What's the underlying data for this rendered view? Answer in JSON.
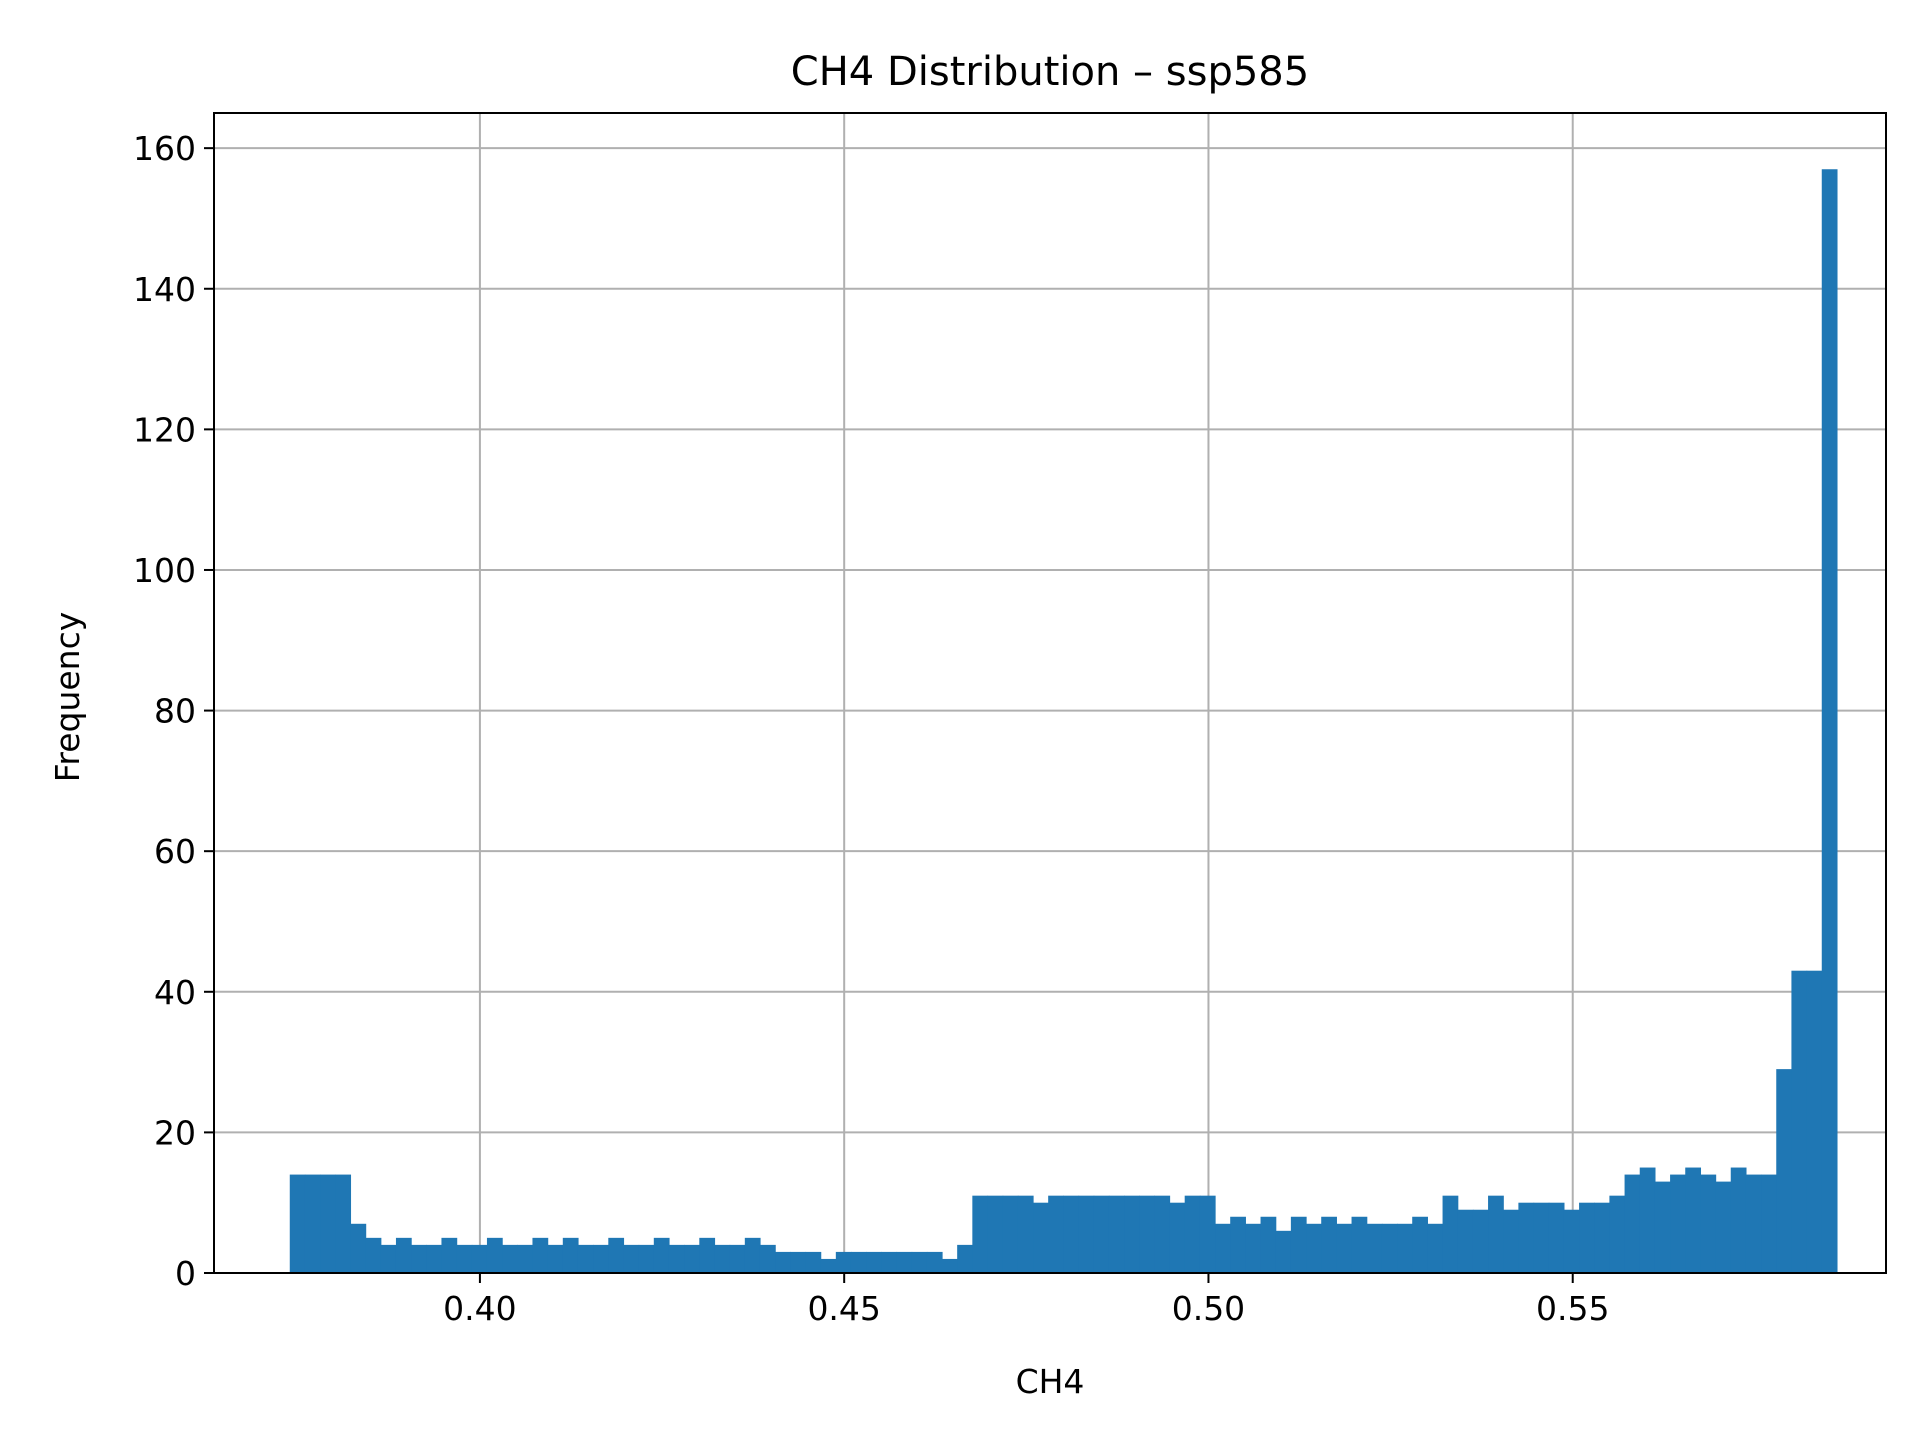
{
  "chart_data": {
    "type": "bar",
    "title": "CH4 Distribution – ssp585",
    "xlabel": "CH4",
    "ylabel": "Frequency",
    "xlim": [
      0.3635,
      0.593
    ],
    "ylim": [
      0,
      165
    ],
    "xticks": [
      0.4,
      0.45,
      0.5,
      0.55
    ],
    "xtick_labels": [
      "0.40",
      "0.45",
      "0.50",
      "0.55"
    ],
    "yticks": [
      0,
      20,
      40,
      60,
      80,
      100,
      120,
      140,
      160
    ],
    "ytick_labels": [
      "0",
      "20",
      "40",
      "60",
      "80",
      "100",
      "120",
      "140",
      "160"
    ],
    "grid": true,
    "color": "#1f77b4",
    "bin_start": 0.3739,
    "bin_width": 0.002082,
    "values": [
      14,
      14,
      14,
      14,
      7,
      5,
      4,
      5,
      4,
      4,
      5,
      4,
      4,
      5,
      4,
      4,
      5,
      4,
      5,
      4,
      4,
      5,
      4,
      4,
      5,
      4,
      4,
      5,
      4,
      4,
      5,
      4,
      3,
      3,
      3,
      2,
      3,
      3,
      3,
      3,
      3,
      3,
      3,
      2,
      4,
      11,
      11,
      11,
      11,
      10,
      11,
      11,
      11,
      11,
      11,
      11,
      11,
      11,
      10,
      11,
      11,
      7,
      8,
      7,
      8,
      6,
      8,
      7,
      8,
      7,
      8,
      7,
      7,
      7,
      8,
      7,
      11,
      9,
      9,
      11,
      9,
      10,
      10,
      10,
      9,
      10,
      10,
      11,
      14,
      15,
      13,
      14,
      15,
      14,
      13,
      15,
      14,
      14,
      29,
      43,
      43,
      157
    ]
  }
}
